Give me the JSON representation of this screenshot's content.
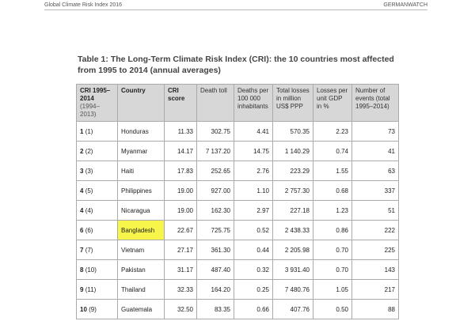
{
  "header": {
    "left": "Global Climate Risk Index 2016",
    "right": "GERMANWATCH"
  },
  "caption": "Table 1: The Long-Term Climate Risk Index (CRI): the 10 countries most affected from 1995 to 2014 (annual averages)",
  "table": {
    "headers": {
      "rank": "CRI 1995–2014",
      "rank_sub": "(1994–2013)",
      "country": "Country",
      "score": "CRI score",
      "death": "Death toll",
      "deaths_per": "Deaths per 100 000 inhabitants",
      "losses": "Total losses in million US$ PPP",
      "gdp": "Losses per unit GDP in %",
      "events": "Number of events (total 1995–2014)"
    },
    "rows": [
      {
        "rank": "1",
        "prev": "(1)",
        "country": "Honduras",
        "score": "11.33",
        "death": "302.75",
        "deaths_per": "4.41",
        "losses": "570.35",
        "gdp": "2.23",
        "events": "73"
      },
      {
        "rank": "2",
        "prev": "(2)",
        "country": "Myanmar",
        "score": "14.17",
        "death": "7 137.20",
        "deaths_per": "14.75",
        "losses": "1 140.29",
        "gdp": "0.74",
        "events": "41"
      },
      {
        "rank": "3",
        "prev": "(3)",
        "country": "Haiti",
        "score": "17.83",
        "death": "252.65",
        "deaths_per": "2.76",
        "losses": "223.29",
        "gdp": "1.55",
        "events": "63"
      },
      {
        "rank": "4",
        "prev": "(5)",
        "country": "Philippines",
        "score": "19.00",
        "death": "927.00",
        "deaths_per": "1.10",
        "losses": "2 757.30",
        "gdp": "0.68",
        "events": "337"
      },
      {
        "rank": "4",
        "prev": "(4)",
        "country": "Nicaragua",
        "score": "19.00",
        "death": "162.30",
        "deaths_per": "2.97",
        "losses": "227.18",
        "gdp": "1.23",
        "events": "51"
      },
      {
        "rank": "6",
        "prev": "(6)",
        "country": "Bangladesh",
        "score": "22.67",
        "death": "725.75",
        "deaths_per": "0.52",
        "losses": "2 438.33",
        "gdp": "0.86",
        "events": "222",
        "highlight": true
      },
      {
        "rank": "7",
        "prev": "(7)",
        "country": "Vietnam",
        "score": "27.17",
        "death": "361.30",
        "deaths_per": "0.44",
        "losses": "2 205.98",
        "gdp": "0.70",
        "events": "225"
      },
      {
        "rank": "8",
        "prev": "(10)",
        "country": "Pakistan",
        "score": "31.17",
        "death": "487.40",
        "deaths_per": "0.32",
        "losses": "3 931.40",
        "gdp": "0.70",
        "events": "143"
      },
      {
        "rank": "9",
        "prev": "(11)",
        "country": "Thailand",
        "score": "32.33",
        "death": "164.20",
        "deaths_per": "0.25",
        "losses": "7 480.76",
        "gdp": "1.05",
        "events": "217"
      },
      {
        "rank": "10",
        "prev": "(9)",
        "country": "Guatemala",
        "score": "32.50",
        "death": "83.35",
        "deaths_per": "0.66",
        "losses": "407.76",
        "gdp": "0.50",
        "events": "88"
      }
    ]
  },
  "colors": {
    "header_bg": "#d7d7d7",
    "highlight": "#f7f54a",
    "border": "#aaaaaa"
  }
}
